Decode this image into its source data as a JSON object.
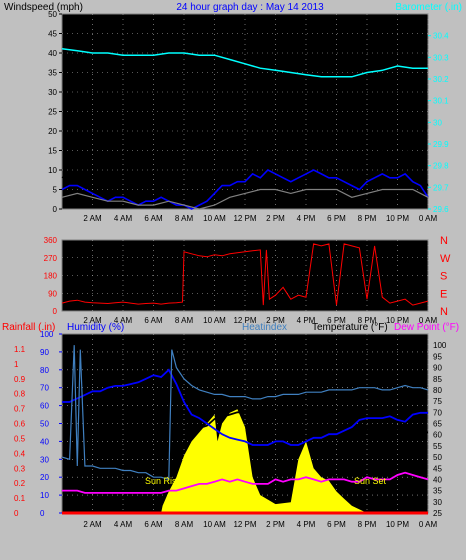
{
  "header": {
    "left_label": "Windspeed (mph)",
    "center_label": "24 hour graph day : May 14 2013",
    "right_label": "Barometer (.in)"
  },
  "colors": {
    "background": "#c0c0c0",
    "plot_bg": "#000000",
    "wind": "#0000ff",
    "gust": "#000000",
    "wind_avg": "#808080",
    "barometer": "#00ffff",
    "direction": "#ff0000",
    "temperature": "#000000",
    "dewpoint": "#ff00ff",
    "humidity": "#0000ff",
    "heatindex": "#4080c0",
    "solar": "#ffff00",
    "rain": "#ff0000"
  },
  "time_axis": [
    "2 AM",
    "4 AM",
    "6 AM",
    "8 AM",
    "10 AM",
    "12 PM",
    "2 PM",
    "4 PM",
    "6 PM",
    "8 PM",
    "10 PM",
    "0 AM"
  ],
  "panel3_labels": {
    "rainfall": "Rainfall (.in)",
    "humidity": "Humidity (%)",
    "heatindex": "Heatindex",
    "temperature": "Temperature (°F)",
    "dewpoint": "Dew Point (°F)",
    "sunrise": "Sun Rise",
    "sunset": "Sun Set"
  },
  "chart_data": [
    {
      "type": "line",
      "panel": "wind_barometer",
      "x_unit": "hour",
      "xlim": [
        0,
        24
      ],
      "ylim_left": [
        0,
        50
      ],
      "yticks_left": [
        "0",
        "5",
        "10",
        "15",
        "20",
        "25",
        "30",
        "35",
        "40",
        "45",
        "50"
      ],
      "ylim_right": [
        29.6,
        30.5
      ],
      "yticks_right": [
        "29.6",
        "29.7",
        "29.8",
        "29.9",
        "30",
        "30.1",
        "30.2",
        "30.3",
        "30.4"
      ],
      "series": [
        {
          "key": "barometer",
          "axis": "right",
          "x": [
            0,
            1,
            2,
            3,
            4,
            5,
            6,
            7,
            8,
            9,
            10,
            11,
            12,
            13,
            14,
            15,
            16,
            17,
            18,
            19,
            20,
            21,
            22,
            23,
            24
          ],
          "y": [
            30.34,
            30.33,
            30.32,
            30.32,
            30.31,
            30.31,
            30.31,
            30.32,
            30.32,
            30.31,
            30.31,
            30.29,
            30.27,
            30.25,
            30.24,
            30.23,
            30.22,
            30.21,
            30.21,
            30.21,
            30.23,
            30.24,
            30.26,
            30.25,
            30.25
          ]
        },
        {
          "key": "gust",
          "axis": "left",
          "x": [
            0,
            0.5,
            1,
            1.5,
            2,
            2.5,
            3,
            3.5,
            4,
            4.5,
            5,
            5.5,
            6,
            6.5,
            7,
            7.5,
            8,
            8.5,
            9,
            9.5,
            10,
            10.5,
            11,
            11.5,
            12,
            12.5,
            13,
            13.5,
            14,
            14.5,
            15,
            15.5,
            16,
            16.5,
            17,
            17.5,
            18,
            18.5,
            19,
            19.5,
            20,
            20.5,
            21,
            21.5,
            22,
            22.5,
            23,
            23.5,
            24
          ],
          "y": [
            8,
            10,
            11,
            9,
            7,
            5,
            4,
            6,
            7,
            5,
            3,
            5,
            4,
            6,
            5,
            3,
            2,
            1,
            3,
            5,
            9,
            12,
            11,
            13,
            12,
            15,
            14,
            18,
            16,
            15,
            13,
            14,
            16,
            17,
            15,
            13,
            14,
            13,
            11,
            10,
            12,
            14,
            15,
            13,
            14,
            16,
            12,
            10,
            6
          ]
        },
        {
          "key": "wind",
          "axis": "left",
          "x": [
            0,
            0.5,
            1,
            1.5,
            2,
            2.5,
            3,
            3.5,
            4,
            4.5,
            5,
            5.5,
            6,
            6.5,
            7,
            7.5,
            8,
            8.5,
            9,
            9.5,
            10,
            10.5,
            11,
            11.5,
            12,
            12.5,
            13,
            13.5,
            14,
            14.5,
            15,
            15.5,
            16,
            16.5,
            17,
            17.5,
            18,
            18.5,
            19,
            19.5,
            20,
            20.5,
            21,
            21.5,
            22,
            22.5,
            23,
            23.5,
            24
          ],
          "y": [
            5,
            6,
            6,
            5,
            4,
            3,
            2,
            3,
            3,
            2,
            1,
            2,
            2,
            3,
            2,
            1,
            1,
            0,
            1,
            2,
            4,
            6,
            6,
            7,
            7,
            9,
            8,
            10,
            9,
            8,
            7,
            8,
            9,
            10,
            9,
            8,
            8,
            7,
            6,
            5,
            7,
            8,
            9,
            8,
            8,
            9,
            7,
            6,
            3
          ]
        },
        {
          "key": "wind_avg",
          "axis": "left",
          "x": [
            0,
            1,
            2,
            3,
            4,
            5,
            6,
            7,
            8,
            9,
            10,
            11,
            12,
            13,
            14,
            15,
            16,
            17,
            18,
            19,
            20,
            21,
            22,
            23,
            24
          ],
          "y": [
            3,
            4,
            3,
            2,
            2,
            1,
            1,
            2,
            1,
            0,
            1,
            3,
            4,
            5,
            5,
            4,
            5,
            5,
            5,
            3,
            4,
            5,
            5,
            5,
            3
          ]
        }
      ]
    },
    {
      "type": "line",
      "panel": "wind_direction",
      "x_unit": "hour",
      "xlim": [
        0,
        24
      ],
      "ylim": [
        0,
        360
      ],
      "yticks": [
        "0",
        "45",
        "90",
        "135",
        "180",
        "225",
        "270",
        "315",
        "360"
      ],
      "compass_labels": [
        "N",
        "W",
        "S",
        "E",
        "N"
      ],
      "series": [
        {
          "key": "direction",
          "x": [
            0,
            0.5,
            1,
            1.5,
            2,
            2.5,
            3,
            3.5,
            4,
            4.5,
            5,
            5.5,
            6,
            6.5,
            7,
            7.5,
            7.9,
            8.0,
            8.5,
            9,
            9.5,
            10,
            10.5,
            11,
            11.5,
            12,
            12.5,
            13,
            13.2,
            13.4,
            13.6,
            14,
            14.5,
            15,
            15.5,
            16,
            16.5,
            17,
            17.5,
            18,
            18.5,
            19,
            19.5,
            20,
            20.5,
            21,
            21.5,
            22,
            22.5,
            23,
            23.5,
            24
          ],
          "y": [
            40,
            50,
            55,
            45,
            42,
            40,
            38,
            42,
            45,
            40,
            35,
            38,
            40,
            35,
            40,
            42,
            45,
            300,
            290,
            280,
            275,
            285,
            280,
            290,
            295,
            300,
            305,
            310,
            30,
            310,
            60,
            80,
            120,
            60,
            80,
            70,
            340,
            330,
            340,
            30,
            340,
            330,
            320,
            60,
            330,
            70,
            40,
            50,
            60,
            30,
            40,
            50
          ]
        }
      ]
    },
    {
      "type": "line",
      "panel": "temp_humidity_rain",
      "x_unit": "hour",
      "xlim": [
        0,
        24
      ],
      "ylim_rain": [
        0,
        1.2
      ],
      "yticks_rain": [
        "0",
        "0.1",
        "0.2",
        "0.3",
        "0.4",
        "0.5",
        "0.6",
        "0.7",
        "0.8",
        "0.9",
        "1",
        "1.1"
      ],
      "ylim_humidity": [
        0,
        100
      ],
      "yticks_humidity": [
        "0",
        "10",
        "20",
        "30",
        "40",
        "50",
        "60",
        "70",
        "80",
        "90",
        "100"
      ],
      "ylim_temp": [
        25,
        105
      ],
      "yticks_temp": [
        "25",
        "30",
        "35",
        "40",
        "45",
        "50",
        "55",
        "60",
        "65",
        "70",
        "75",
        "80",
        "85",
        "90",
        "95",
        "100"
      ],
      "series": [
        {
          "key": "solar",
          "scale": "humidity",
          "area": true,
          "x": [
            0,
            6.5,
            6.6,
            7,
            7.5,
            8,
            8.5,
            9,
            9.5,
            10,
            10.2,
            10.5,
            11,
            11.5,
            12,
            12.5,
            13,
            14,
            15,
            15.5,
            16,
            16.5,
            17,
            17.5,
            18,
            18.5,
            19,
            19.5,
            20,
            24
          ],
          "y": [
            0,
            0,
            4,
            12,
            20,
            32,
            40,
            45,
            50,
            55,
            40,
            50,
            56,
            58,
            48,
            20,
            10,
            5,
            6,
            30,
            40,
            25,
            20,
            18,
            12,
            8,
            4,
            2,
            0,
            0
          ]
        },
        {
          "key": "temperature",
          "scale": "temp",
          "x": [
            0,
            0.5,
            1,
            1.5,
            2,
            2.5,
            3,
            3.5,
            4,
            4.5,
            5,
            5.5,
            6,
            6.5,
            7,
            7.5,
            8,
            8.5,
            9,
            9.5,
            10,
            10.5,
            11,
            11.5,
            12,
            12.5,
            13,
            13.5,
            14,
            14.5,
            15,
            15.5,
            16,
            16.5,
            17,
            17.5,
            18,
            18.5,
            19,
            19.5,
            20,
            20.5,
            21,
            21.5,
            22,
            22.5,
            23,
            23.5,
            24
          ],
          "y": [
            50,
            47,
            48,
            46,
            46,
            45,
            45,
            45,
            44,
            44,
            43,
            43,
            41,
            41,
            40,
            48,
            56,
            60,
            63,
            64,
            67,
            68,
            69,
            70,
            70,
            71,
            71,
            69,
            69,
            70,
            71,
            71,
            71,
            69,
            69,
            68,
            68,
            66,
            65,
            64,
            62,
            62,
            61,
            61,
            62,
            63,
            62,
            61,
            61
          ]
        },
        {
          "key": "dewpoint",
          "scale": "temp",
          "x": [
            0,
            0.5,
            1,
            1.5,
            2,
            2.5,
            3,
            3.5,
            4,
            4.5,
            5,
            5.5,
            6,
            6.5,
            7,
            7.5,
            8,
            8.5,
            9,
            9.5,
            10,
            10.5,
            11,
            11.5,
            12,
            12.5,
            13,
            13.5,
            14,
            14.5,
            15,
            15.5,
            16,
            16.5,
            17,
            17.5,
            18,
            18.5,
            19,
            19.5,
            20,
            20.5,
            21,
            21.5,
            22,
            22.5,
            23,
            23.5,
            24
          ],
          "y": [
            35,
            35,
            35,
            34,
            34,
            34,
            34,
            34,
            34,
            34,
            34,
            34,
            34,
            34,
            35,
            35,
            36,
            37,
            38,
            38,
            39,
            40,
            39,
            40,
            39,
            38,
            38,
            38,
            40,
            39,
            40,
            40,
            41,
            40,
            39,
            40,
            40,
            40,
            39,
            39,
            41,
            40,
            40,
            40,
            42,
            43,
            42,
            41,
            40
          ]
        },
        {
          "key": "humidity",
          "scale": "humidity",
          "x": [
            0,
            0.5,
            1,
            1.5,
            2,
            2.5,
            3,
            3.5,
            4,
            4.5,
            5,
            5.5,
            6,
            6.5,
            7,
            7.5,
            8,
            8.5,
            9,
            9.5,
            10,
            10.5,
            11,
            11.5,
            12,
            12.5,
            13,
            13.5,
            14,
            14.5,
            15,
            15.5,
            16,
            16.5,
            17,
            17.5,
            18,
            18.5,
            19,
            19.5,
            20,
            20.5,
            21,
            21.5,
            22,
            22.5,
            23,
            23.5,
            24
          ],
          "y": [
            62,
            62,
            64,
            66,
            68,
            68,
            70,
            71,
            71,
            72,
            73,
            75,
            77,
            76,
            80,
            72,
            62,
            55,
            53,
            50,
            47,
            44,
            42,
            41,
            40,
            38,
            38,
            38,
            40,
            40,
            38,
            38,
            40,
            42,
            42,
            44,
            44,
            46,
            48,
            52,
            53,
            53,
            53,
            54,
            52,
            51,
            55,
            56,
            56
          ]
        },
        {
          "key": "heatindex",
          "scale": "temp",
          "x": [
            0,
            0.5,
            0.8,
            1,
            1.2,
            1.5,
            2,
            2.5,
            3,
            3.5,
            4,
            4.5,
            5,
            5.5,
            6,
            6.5,
            7,
            7.2,
            7.5,
            8,
            8.5,
            9,
            9.5,
            10,
            10.5,
            11,
            11.5,
            12,
            12.5,
            13,
            13.5,
            14,
            14.5,
            15,
            15.5,
            16,
            16.5,
            17,
            17.5,
            18,
            18.5,
            19,
            19.5,
            20,
            20.5,
            21,
            21.5,
            22,
            22.5,
            23,
            23.5,
            24
          ],
          "y": [
            50,
            49,
            100,
            46,
            98,
            46,
            46,
            45,
            45,
            45,
            44,
            44,
            43,
            43,
            41,
            41,
            40,
            98,
            90,
            85,
            82,
            80,
            79,
            78,
            78,
            77,
            77,
            77,
            76,
            76,
            77,
            77,
            78,
            78,
            78,
            79,
            79,
            79,
            80,
            80,
            80,
            80,
            81,
            81,
            81,
            80,
            80,
            81,
            82,
            81,
            81,
            80
          ]
        },
        {
          "key": "rain",
          "scale": "rain",
          "x": [
            0,
            24
          ],
          "y": [
            0,
            0
          ]
        }
      ]
    }
  ]
}
